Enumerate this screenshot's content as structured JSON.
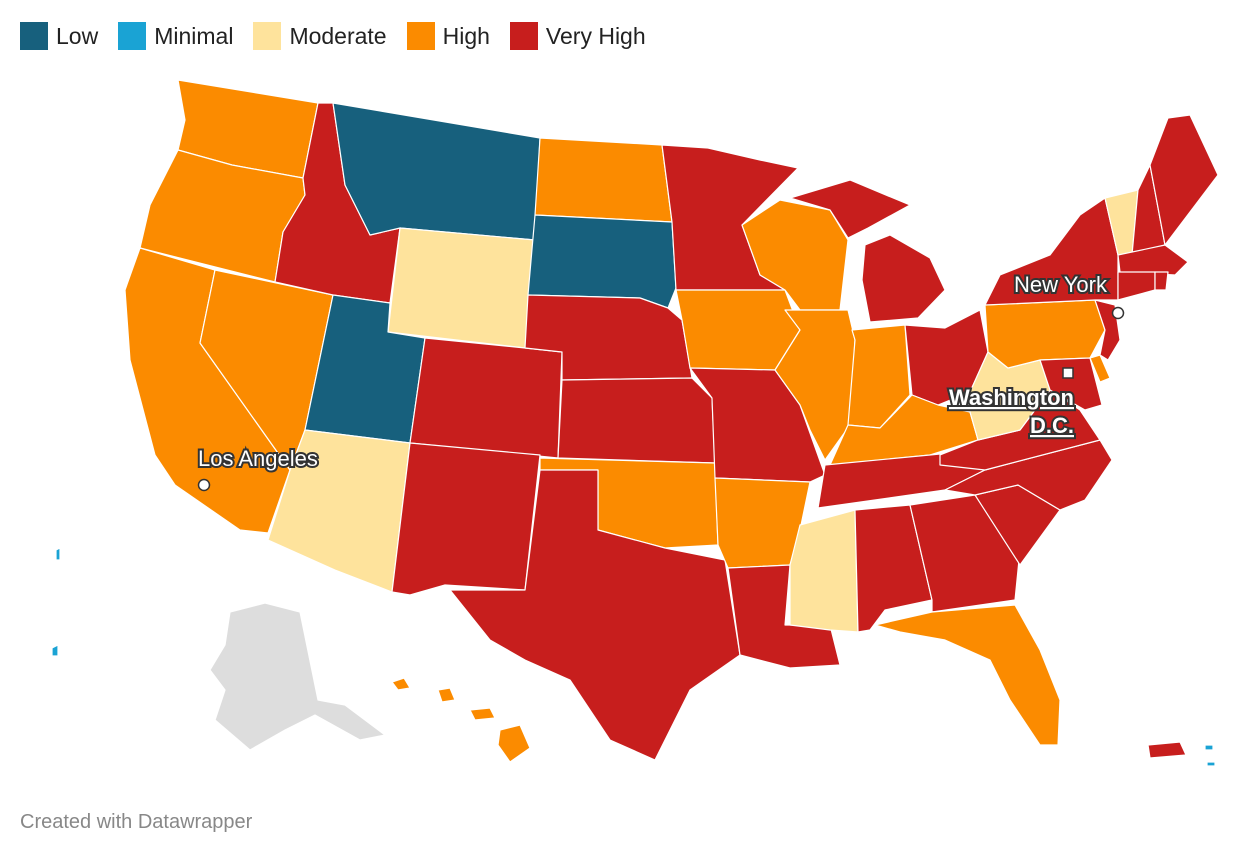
{
  "legend": [
    {
      "label": "Low",
      "color": "#17607d"
    },
    {
      "label": "Minimal",
      "color": "#1aa3d4"
    },
    {
      "label": "Moderate",
      "color": "#fee39c"
    },
    {
      "label": "High",
      "color": "#fb8b00"
    },
    {
      "label": "Very High",
      "color": "#c71e1d"
    }
  ],
  "colors": {
    "low": "#17607d",
    "minimal": "#1aa3d4",
    "moderate": "#fee39c",
    "high": "#fb8b00",
    "very_high": "#c71e1d",
    "no_data": "#dddddd"
  },
  "states": [
    {
      "name": "Washington",
      "level": "high"
    },
    {
      "name": "Oregon",
      "level": "high"
    },
    {
      "name": "California",
      "level": "high"
    },
    {
      "name": "Nevada",
      "level": "high"
    },
    {
      "name": "Idaho",
      "level": "very_high"
    },
    {
      "name": "Montana",
      "level": "low"
    },
    {
      "name": "Wyoming",
      "level": "moderate"
    },
    {
      "name": "Utah",
      "level": "low"
    },
    {
      "name": "Arizona",
      "level": "moderate"
    },
    {
      "name": "Colorado",
      "level": "very_high"
    },
    {
      "name": "New Mexico",
      "level": "very_high"
    },
    {
      "name": "North Dakota",
      "level": "high"
    },
    {
      "name": "South Dakota",
      "level": "low"
    },
    {
      "name": "Nebraska",
      "level": "very_high"
    },
    {
      "name": "Kansas",
      "level": "very_high"
    },
    {
      "name": "Oklahoma",
      "level": "high"
    },
    {
      "name": "Texas",
      "level": "very_high"
    },
    {
      "name": "Minnesota",
      "level": "very_high"
    },
    {
      "name": "Iowa",
      "level": "high"
    },
    {
      "name": "Missouri",
      "level": "very_high"
    },
    {
      "name": "Arkansas",
      "level": "high"
    },
    {
      "name": "Louisiana",
      "level": "very_high"
    },
    {
      "name": "Wisconsin",
      "level": "high"
    },
    {
      "name": "Illinois",
      "level": "high"
    },
    {
      "name": "Michigan",
      "level": "very_high"
    },
    {
      "name": "Indiana",
      "level": "high"
    },
    {
      "name": "Ohio",
      "level": "very_high"
    },
    {
      "name": "Kentucky",
      "level": "high"
    },
    {
      "name": "Tennessee",
      "level": "very_high"
    },
    {
      "name": "Mississippi",
      "level": "moderate"
    },
    {
      "name": "Alabama",
      "level": "very_high"
    },
    {
      "name": "Georgia",
      "level": "very_high"
    },
    {
      "name": "Florida",
      "level": "high"
    },
    {
      "name": "South Carolina",
      "level": "very_high"
    },
    {
      "name": "North Carolina",
      "level": "very_high"
    },
    {
      "name": "Virginia",
      "level": "very_high"
    },
    {
      "name": "West Virginia",
      "level": "moderate"
    },
    {
      "name": "Pennsylvania",
      "level": "high"
    },
    {
      "name": "Maryland",
      "level": "very_high"
    },
    {
      "name": "Delaware",
      "level": "high"
    },
    {
      "name": "New Jersey",
      "level": "very_high"
    },
    {
      "name": "New York",
      "level": "very_high"
    },
    {
      "name": "Vermont",
      "level": "moderate"
    },
    {
      "name": "New Hampshire",
      "level": "very_high"
    },
    {
      "name": "Maine",
      "level": "very_high"
    },
    {
      "name": "Massachusetts",
      "level": "very_high"
    },
    {
      "name": "Connecticut",
      "level": "very_high"
    },
    {
      "name": "Rhode Island",
      "level": "very_high"
    },
    {
      "name": "Alaska",
      "level": "no_data"
    },
    {
      "name": "Hawaii",
      "level": "high"
    },
    {
      "name": "Puerto Rico",
      "level": "very_high"
    },
    {
      "name": "Guam",
      "level": "minimal"
    },
    {
      "name": "U.S. Virgin Islands",
      "level": "minimal"
    }
  ],
  "cities": [
    {
      "name": "Los Angeles"
    },
    {
      "name": "New York"
    }
  ],
  "capital": {
    "line1": "Washington",
    "line2": "D.C."
  },
  "footer": "Created with Datawrapper"
}
